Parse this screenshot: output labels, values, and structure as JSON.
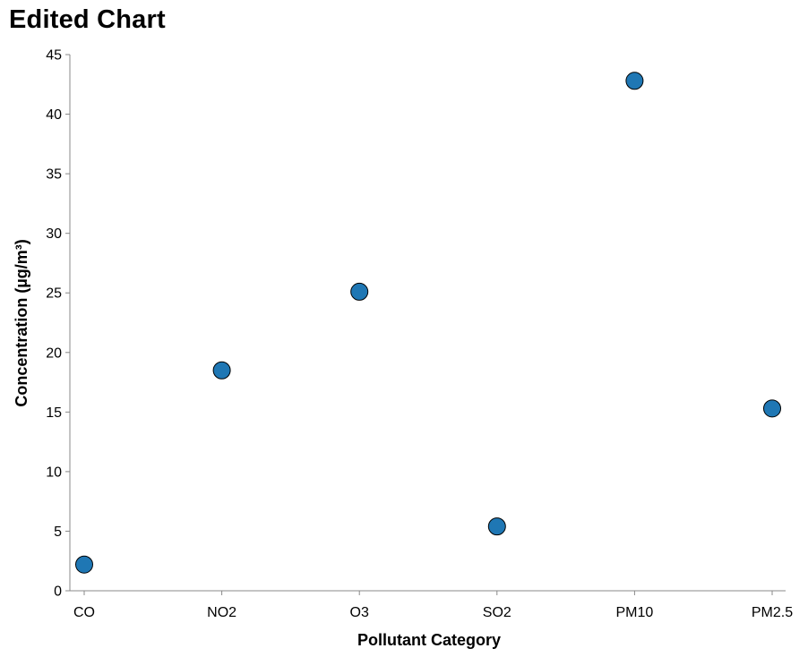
{
  "chart_data": {
    "type": "scatter",
    "title": "Edited Chart",
    "xlabel": "Pollutant Category",
    "ylabel": "Concentration (µg/m³)",
    "categories": [
      "CO",
      "NO2",
      "O3",
      "SO2",
      "PM10",
      "PM2.5"
    ],
    "values": [
      2.2,
      18.5,
      25.1,
      5.4,
      42.8,
      15.3
    ],
    "ylim": [
      0,
      45
    ],
    "yticks": [
      0,
      5,
      10,
      15,
      20,
      25,
      30,
      35,
      40,
      45
    ],
    "grid": false,
    "point_color": "#1f77b4",
    "point_stroke": "#000000"
  }
}
